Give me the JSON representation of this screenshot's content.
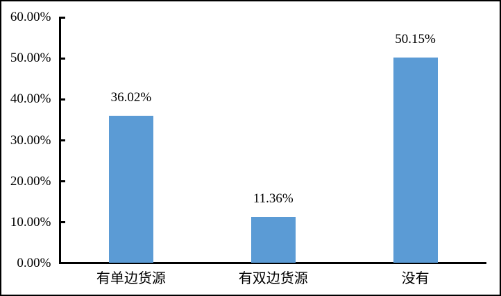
{
  "chart_data": {
    "type": "bar",
    "categories": [
      "有单边货源",
      "有双边货源",
      "没有"
    ],
    "values": [
      36.02,
      11.36,
      50.15
    ],
    "value_labels": [
      "36.02%",
      "11.36%",
      "50.15%"
    ],
    "title": "",
    "xlabel": "",
    "ylabel": "",
    "ylim": [
      0,
      60
    ],
    "ytick_step": 10,
    "ytick_labels": [
      "0.00%",
      "10.00%",
      "20.00%",
      "30.00%",
      "40.00%",
      "50.00%",
      "60.00%"
    ],
    "grid": false,
    "legend": false,
    "colors": {
      "bar": "#5B9BD5",
      "axis": "#000000",
      "text": "#000000",
      "background": "#FFFFFF",
      "border": "#000000"
    }
  }
}
